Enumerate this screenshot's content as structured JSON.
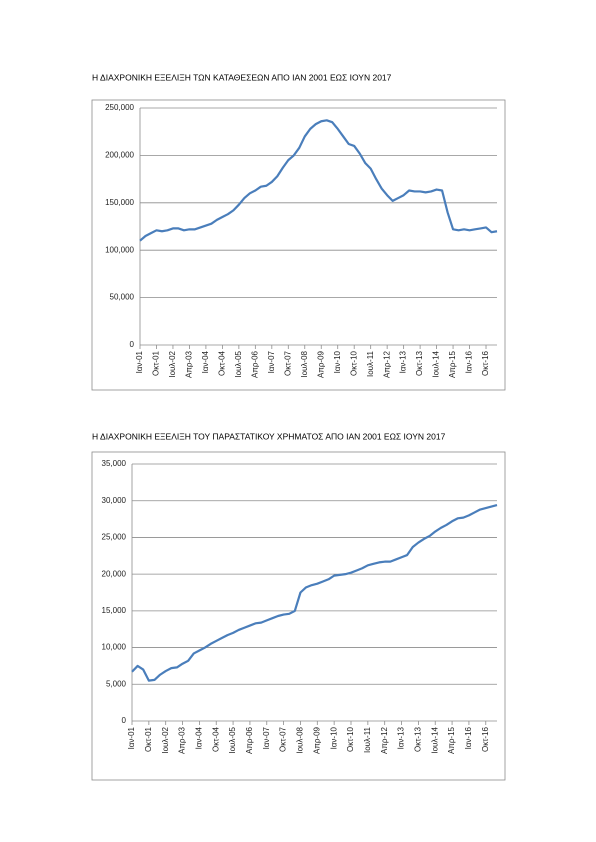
{
  "chart_data": [
    {
      "type": "line",
      "title": "Η ΔΙΑΧΡΟΝΙΚΗ ΕΞΕΛΙΞΗ ΤΩΝ ΚΑΤΑΘΕΣΕΩΝ ΑΠΟ ΙΑΝ 2001 ΕΩΣ ΙΟΥΝ 2017",
      "categories": [
        "Ιαν-01",
        null,
        null,
        "Οκτ-01",
        null,
        null,
        "Ιουλ-02",
        null,
        null,
        "Απρ-03",
        null,
        null,
        "Ιαν-04",
        null,
        null,
        "Οκτ-04",
        null,
        null,
        "Ιουλ-05",
        null,
        null,
        "Απρ-06",
        null,
        null,
        "Ιαν-07",
        null,
        null,
        "Οκτ-07",
        null,
        null,
        "Ιουλ-08",
        null,
        null,
        "Απρ-09",
        null,
        null,
        "Ιαν-10",
        null,
        null,
        "Οκτ-10",
        null,
        null,
        "Ιουλ-11",
        null,
        null,
        "Απρ-12",
        null,
        null,
        "Ιαν-13",
        null,
        null,
        "Οκτ-13",
        null,
        null,
        "Ιουλ-14",
        null,
        null,
        "Απρ-15",
        null,
        null,
        "Ιαν-16",
        null,
        null,
        "Οκτ-16",
        null,
        null
      ],
      "color": "#4a7ebb",
      "values": [
        110000,
        115000,
        118000,
        121000,
        120000,
        121000,
        123000,
        123000,
        121000,
        122000,
        122000,
        124000,
        126000,
        128000,
        132000,
        135000,
        138000,
        142000,
        148000,
        155000,
        160000,
        163000,
        167000,
        168000,
        172000,
        178000,
        187000,
        195000,
        200000,
        208000,
        220000,
        228000,
        233000,
        236000,
        237000,
        235000,
        228000,
        220000,
        212000,
        210000,
        202000,
        192000,
        186000,
        175000,
        165000,
        158000,
        152000,
        155000,
        158000,
        163000,
        162000,
        162000,
        161000,
        162000,
        164000,
        163000,
        140000,
        122000,
        121000,
        122000,
        121000,
        122000,
        123000,
        124000,
        119000,
        120000
      ],
      "ylim": [
        0,
        250000
      ],
      "yticks": [
        0,
        {
          "value": 50000,
          "label": "50,000"
        },
        {
          "value": 100000,
          "label": "100,000"
        },
        {
          "value": 150000,
          "label": "150,000"
        },
        {
          "value": 200000,
          "label": "200,000"
        },
        {
          "value": 250000,
          "label": "250,000"
        }
      ],
      "grid": true
    },
    {
      "type": "line",
      "title": "Η ΔΙΑΧΡΟΝΙΚΗ ΕΞΕΛΙΞΗ ΤΟΥ ΠΑΡΑΣΤΑΤΙΚΟΥ ΧΡΗΜΑΤΟΣ ΑΠΟ ΙΑΝ 2001 ΕΩΣ ΙΟΥΝ 2017",
      "categories": [
        "Ιαν-01",
        null,
        null,
        "Οκτ-01",
        null,
        null,
        "Ιουλ-02",
        null,
        null,
        "Απρ-03",
        null,
        null,
        "Ιαν-04",
        null,
        null,
        "Οκτ-04",
        null,
        null,
        "Ιουλ-05",
        null,
        null,
        "Απρ-06",
        null,
        null,
        "Ιαν-07",
        null,
        null,
        "Οκτ-07",
        null,
        null,
        "Ιουλ-08",
        null,
        null,
        "Απρ-09",
        null,
        null,
        "Ιαν-10",
        null,
        null,
        "Οκτ-10",
        null,
        null,
        "Ιουλ-11",
        null,
        null,
        "Απρ-12",
        null,
        null,
        "Ιαν-13",
        null,
        null,
        "Οκτ-13",
        null,
        null,
        "Ιουλ-14",
        null,
        null,
        "Απρ-15",
        null,
        null,
        "Ιαν-16",
        null,
        null,
        "Οκτ-16",
        null,
        null
      ],
      "color": "#4a7ebb",
      "values": [
        6700,
        7500,
        7000,
        5500,
        5600,
        6300,
        6800,
        7200,
        7300,
        7800,
        8200,
        9200,
        9600,
        10000,
        10500,
        10900,
        11300,
        11700,
        12000,
        12400,
        12700,
        13000,
        13300,
        13400,
        13700,
        14000,
        14300,
        14500,
        14600,
        15000,
        17500,
        18200,
        18500,
        18700,
        19000,
        19300,
        19800,
        19900,
        20000,
        20200,
        20500,
        20800,
        21200,
        21400,
        21600,
        21700,
        21700,
        22000,
        22300,
        22600,
        23700,
        24300,
        24800,
        25200,
        25800,
        26300,
        26700,
        27200,
        27600,
        27700,
        28000,
        28400,
        28800,
        29000,
        29200,
        29400
      ],
      "ylim": [
        0,
        35000
      ],
      "yticks": [
        0,
        {
          "value": 5000,
          "label": "5,000"
        },
        {
          "value": 10000,
          "label": "10,000"
        },
        {
          "value": 15000,
          "label": "15,000"
        },
        {
          "value": 20000,
          "label": "20,000"
        },
        {
          "value": 25000,
          "label": "25,000"
        },
        {
          "value": 30000,
          "label": "30,000"
        },
        {
          "value": 35000,
          "label": "35,000"
        }
      ],
      "grid": true
    }
  ]
}
